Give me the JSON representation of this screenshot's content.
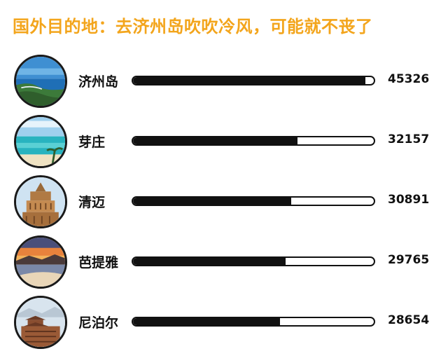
{
  "chart_data": {
    "type": "bar",
    "title": "国外目的地：去济州岛吹吹冷风，可能就不丧了",
    "categories": [
      "济州岛",
      "芽庄",
      "清迈",
      "芭提雅",
      "尼泊尔"
    ],
    "values": [
      45326,
      32157,
      30891,
      29765,
      28654
    ],
    "xlim": [
      0,
      47000
    ],
    "orientation": "horizontal",
    "bar_color": "#111111",
    "title_color": "#f3a51c"
  },
  "rows": [
    {
      "image": "coastal-island-photo"
    },
    {
      "image": "beach-lagoon-photo"
    },
    {
      "image": "temple-photo"
    },
    {
      "image": "sunset-bay-photo"
    },
    {
      "image": "pagoda-city-photo"
    }
  ]
}
